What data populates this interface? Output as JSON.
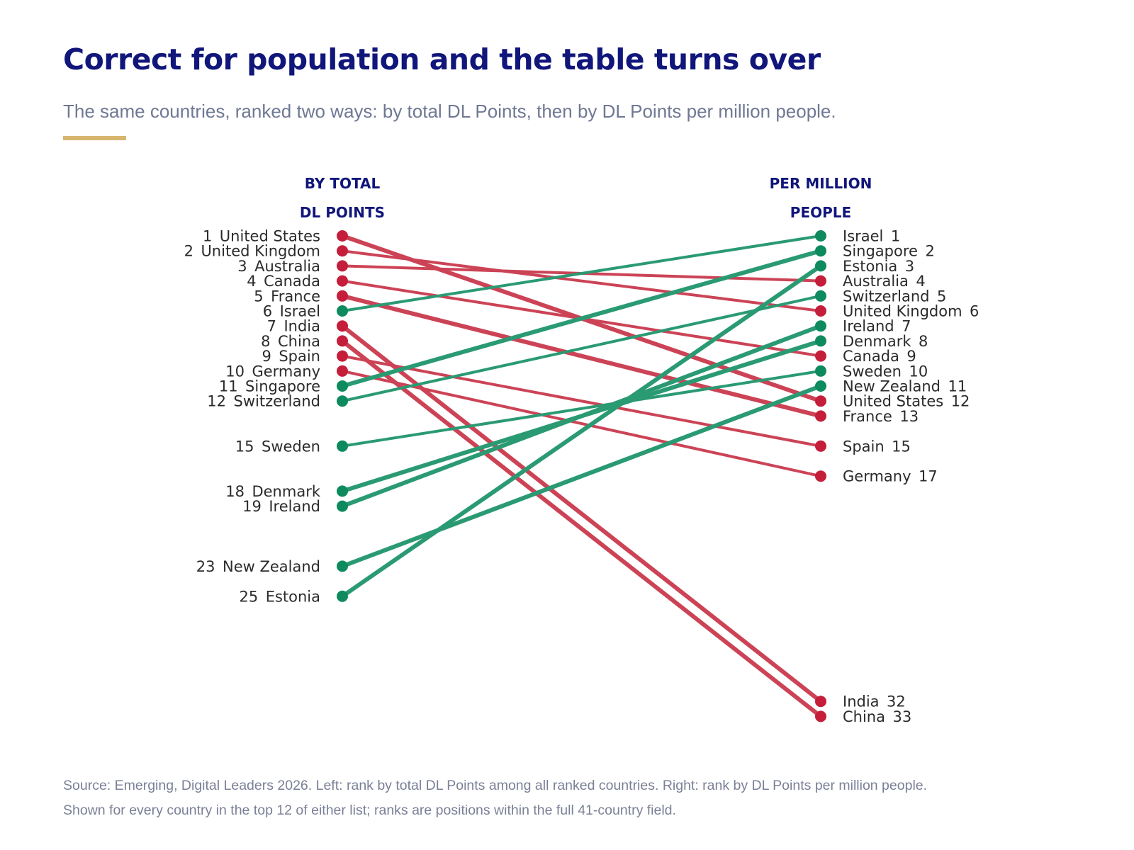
{
  "title": "Correct for population and the table turns over",
  "subtitle": "The same countries, ranked two ways: by total DL Points, then by DL Points per million people.",
  "source": "Source: Emerging, Digital Leaders 2026. Left: rank by total DL Points among all ranked countries. Right: rank by DL Points per million people. Shown for every country in the top 12 of either list; ranks are positions within the full 41-country field.",
  "colors": {
    "title": "#10167a",
    "subtitle": "#6f7893",
    "accent": "#d7b670",
    "gain": "#0e8a5f",
    "gain_line": "#2a9a73",
    "loss": "#c41e3a",
    "loss_line": "#cc4356",
    "label": "#2b2b2b"
  },
  "chart_data": {
    "type": "slope",
    "left_header": [
      "BY TOTAL",
      "DL POINTS"
    ],
    "right_header": [
      "PER MILLION",
      "PEOPLE"
    ],
    "series": [
      {
        "country": "United States",
        "rank_total": 1,
        "rank_per_million": 12
      },
      {
        "country": "United Kingdom",
        "rank_total": 2,
        "rank_per_million": 6
      },
      {
        "country": "Australia",
        "rank_total": 3,
        "rank_per_million": 4
      },
      {
        "country": "Canada",
        "rank_total": 4,
        "rank_per_million": 9
      },
      {
        "country": "France",
        "rank_total": 5,
        "rank_per_million": 13
      },
      {
        "country": "Israel",
        "rank_total": 6,
        "rank_per_million": 1
      },
      {
        "country": "India",
        "rank_total": 7,
        "rank_per_million": 32
      },
      {
        "country": "China",
        "rank_total": 8,
        "rank_per_million": 33
      },
      {
        "country": "Spain",
        "rank_total": 9,
        "rank_per_million": 15
      },
      {
        "country": "Germany",
        "rank_total": 10,
        "rank_per_million": 17
      },
      {
        "country": "Singapore",
        "rank_total": 11,
        "rank_per_million": 2
      },
      {
        "country": "Switzerland",
        "rank_total": 12,
        "rank_per_million": 5
      },
      {
        "country": "Sweden",
        "rank_total": 15,
        "rank_per_million": 10
      },
      {
        "country": "Denmark",
        "rank_total": 18,
        "rank_per_million": 8
      },
      {
        "country": "Ireland",
        "rank_total": 19,
        "rank_per_million": 7
      },
      {
        "country": "New Zealand",
        "rank_total": 23,
        "rank_per_million": 11
      },
      {
        "country": "Estonia",
        "rank_total": 25,
        "rank_per_million": 3
      }
    ]
  }
}
